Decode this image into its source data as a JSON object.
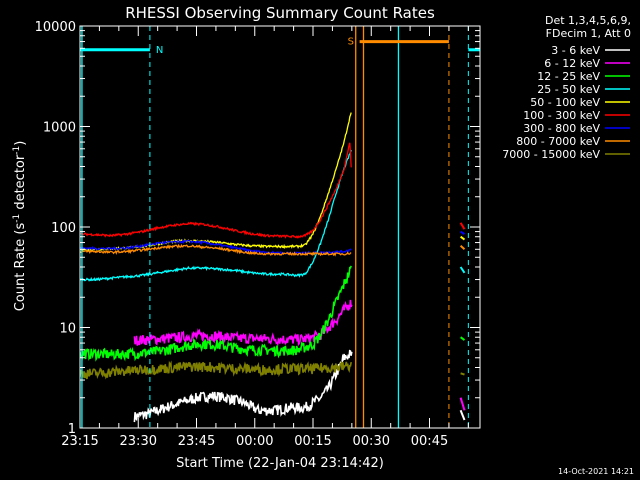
{
  "chart_data": {
    "type": "line",
    "title": "RHESSI Observing Summary Count Rates",
    "xlabel": "Start Time (22-Jan-04 23:14:42)",
    "ylabel": "Count Rate (s",
    "ylabel_sup": "-1",
    "ylabel_tail": " detector",
    "ylabel_sup2": "-1",
    "ylabel_close": ")",
    "x_ticks": [
      "23:15",
      "23:30",
      "23:45",
      "00:00",
      "00:15",
      "00:30",
      "00:45"
    ],
    "x_tick_minutes": [
      0,
      15,
      30,
      45,
      60,
      75,
      90
    ],
    "xlim_minutes": [
      0,
      103
    ],
    "y_ticks": [
      "1",
      "10",
      "100",
      "1000",
      "10000"
    ],
    "y_tick_values": [
      1,
      10,
      100,
      1000,
      10000
    ],
    "ylim": [
      1,
      10000
    ],
    "y_scale": "log",
    "legend_header": [
      "Det 1,3,4,5,6,9,",
      "FDecim 1, Att 0"
    ],
    "legend_placement": "right",
    "footer_date": "14-Oct-2021 14:21",
    "flags": [
      {
        "label": "N",
        "color": "#00ffff",
        "segments": [
          [
            0,
            18
          ],
          [
            100,
            103
          ]
        ],
        "marks": [
          18,
          100
        ],
        "level": 5800
      },
      {
        "label": "S",
        "color": "#ff8c00",
        "segments": [
          [
            72,
            95
          ]
        ],
        "marks": [
          95
        ],
        "level": 7000
      }
    ],
    "vertical_lines": [
      {
        "minute": 71,
        "color": "#ff8c00",
        "style": "solid"
      },
      {
        "minute": 73,
        "color": "#ff8c00",
        "style": "solid"
      },
      {
        "minute": 82,
        "color": "#00ffff",
        "style": "solid"
      },
      {
        "minute": 0.5,
        "color": "#00ffff",
        "style": "solid"
      }
    ],
    "series": [
      {
        "name": "3 - 6 keV",
        "color": "#ffffff",
        "x": [
          14,
          18,
          22,
          26,
          30,
          34,
          38,
          42,
          46,
          50,
          54,
          58,
          62,
          64,
          66,
          68,
          70
        ],
        "y": [
          1.3,
          1.4,
          1.6,
          1.8,
          2.0,
          2.1,
          2.0,
          1.8,
          1.5,
          1.5,
          1.6,
          1.6,
          2.0,
          2.5,
          3.5,
          5.0,
          5.5
        ],
        "tail_x": [
          98,
          99
        ],
        "tail_y": [
          1.5,
          1.2
        ]
      },
      {
        "name": "6 - 12 keV",
        "color": "#ff00ff",
        "x": [
          14,
          20,
          26,
          30,
          34,
          38,
          42,
          46,
          50,
          54,
          58,
          60,
          62,
          64,
          66,
          68,
          70
        ],
        "y": [
          7.5,
          7.7,
          8.0,
          8.3,
          8.3,
          8.0,
          7.8,
          7.8,
          7.7,
          7.6,
          7.7,
          8.0,
          8.5,
          10,
          12,
          15,
          18
        ],
        "tail_x": [
          98,
          99
        ],
        "tail_y": [
          2.0,
          1.5
        ]
      },
      {
        "name": "12 - 25 keV",
        "color": "#00ff00",
        "x": [
          0,
          4,
          8,
          12,
          16,
          20,
          24,
          28,
          32,
          36,
          40,
          44,
          48,
          52,
          56,
          60,
          62,
          64,
          66,
          68,
          70
        ],
        "y": [
          5.5,
          5.5,
          5.4,
          5.5,
          5.6,
          5.8,
          6.2,
          6.7,
          6.9,
          6.7,
          6.3,
          6.0,
          6.0,
          5.9,
          6.0,
          6.8,
          8.5,
          12,
          18,
          27,
          40
        ],
        "tail_x": [
          98,
          99
        ],
        "tail_y": [
          8,
          7.5
        ]
      },
      {
        "name": "25 - 50 keV",
        "color": "#00ffff",
        "x": [
          0,
          4,
          8,
          12,
          16,
          20,
          24,
          28,
          32,
          36,
          40,
          44,
          48,
          52,
          56,
          58,
          60,
          62,
          64,
          66,
          68,
          70
        ],
        "y": [
          30,
          30,
          31,
          32,
          33,
          35,
          37,
          39,
          39,
          38,
          37,
          35,
          34,
          34,
          33,
          34,
          45,
          70,
          120,
          220,
          380,
          600
        ],
        "tail_x": [
          98,
          99
        ],
        "tail_y": [
          40,
          35
        ]
      },
      {
        "name": "50 - 100 keV",
        "color": "#ffff00",
        "x": [
          0,
          4,
          8,
          12,
          16,
          20,
          24,
          28,
          32,
          36,
          40,
          44,
          48,
          52,
          56,
          58,
          60,
          62,
          64,
          66,
          68,
          70
        ],
        "y": [
          60,
          60,
          61,
          62,
          64,
          68,
          72,
          73,
          72,
          70,
          67,
          65,
          64,
          64,
          64,
          66,
          85,
          130,
          220,
          380,
          700,
          1500
        ],
        "tail_x": [
          98,
          99
        ],
        "tail_y": [
          80,
          75
        ]
      },
      {
        "name": "100 - 300 keV",
        "color": "#ff0000",
        "x": [
          0,
          4,
          8,
          12,
          16,
          20,
          24,
          28,
          32,
          36,
          40,
          44,
          48,
          52,
          56,
          58,
          60,
          62,
          64,
          66,
          68,
          69.5,
          70
        ],
        "y": [
          85,
          84,
          82,
          85,
          90,
          98,
          104,
          108,
          106,
          100,
          92,
          86,
          82,
          81,
          80,
          82,
          92,
          120,
          170,
          240,
          380,
          700,
          300
        ],
        "tail_x": [
          98,
          99
        ],
        "tail_y": [
          110,
          95
        ]
      },
      {
        "name": "300 - 800 keV",
        "color": "#0000ff",
        "x": [
          0,
          4,
          8,
          12,
          16,
          20,
          24,
          28,
          32,
          36,
          40,
          44,
          48,
          52,
          56,
          60,
          64,
          68,
          70
        ],
        "y": [
          62,
          61,
          61,
          62,
          65,
          69,
          71,
          72,
          70,
          66,
          62,
          58,
          56,
          55,
          55,
          55,
          56,
          57,
          60
        ],
        "tail_x": [
          98,
          99
        ],
        "tail_y": [
          90,
          85
        ]
      },
      {
        "name": "800 - 7000 keV",
        "color": "#ff8c00",
        "x": [
          0,
          4,
          8,
          12,
          16,
          20,
          24,
          28,
          32,
          36,
          40,
          44,
          48,
          52,
          56,
          60,
          64,
          68,
          70
        ],
        "y": [
          57,
          57,
          56,
          57,
          59,
          62,
          64,
          65,
          63,
          61,
          58,
          55,
          54,
          54,
          54,
          54,
          54,
          54,
          55
        ],
        "tail_x": [
          98,
          99
        ],
        "tail_y": [
          65,
          60
        ]
      },
      {
        "name": "7000 - 15000 keV",
        "color": "#808000",
        "x": [
          0,
          4,
          8,
          12,
          16,
          20,
          24,
          28,
          32,
          36,
          40,
          44,
          48,
          52,
          56,
          60,
          64,
          68,
          70
        ],
        "y": [
          3.5,
          3.5,
          3.6,
          3.7,
          3.8,
          3.9,
          4.0,
          4.1,
          4.1,
          4.0,
          3.9,
          3.9,
          3.8,
          3.9,
          3.9,
          3.9,
          4.0,
          4.1,
          4.2
        ],
        "tail_x": [
          98,
          99
        ],
        "tail_y": [
          3.5,
          3.4
        ]
      }
    ]
  }
}
